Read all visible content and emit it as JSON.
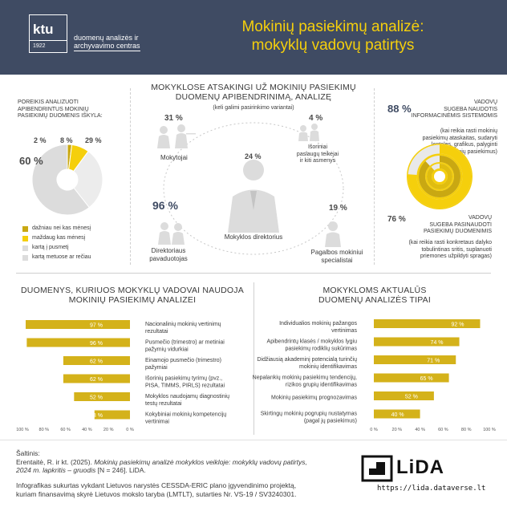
{
  "header": {
    "logo_mark": "ktu",
    "logo_year": "1922",
    "logo_line1": "duomenų analizės ir",
    "logo_line2": "archyvavimo centras",
    "title_line1": "Mokinių pasiekimų analizė:",
    "title_line2": "mokyklų vadovų patirtys"
  },
  "needs_section": {
    "title_line1": "POREIKIS ANALIZUOTI",
    "title_line2": "APIBENDRINTUS MOKINIŲ",
    "title_line3": "PASIEKIMŲ DUOMENIS IŠKYLA:",
    "legend": [
      {
        "label": "dažniau nei kas mėnesį",
        "color": "#c9a812"
      },
      {
        "label": "maždaug kas mėnesį",
        "color": "#f5cf0c"
      },
      {
        "label": "kartą į pusmetį",
        "color": "#dcdcdc"
      },
      {
        "label": "kartą metuose ar rečiau",
        "color": "#dcdcdc"
      }
    ]
  },
  "responsible_section": {
    "title_line1": "MOKYKLOSE ATSAKINGI UŽ MOKINIŲ PASIEKIMŲ",
    "title_line2": "DUOMENŲ APIBENDRINIMĄ, ANALIZĘ",
    "subtitle": "(keli galimi pasirinkimo variantai)",
    "roles": [
      {
        "pct": "31 %",
        "label": "Mokytojai"
      },
      {
        "pct": "4 %",
        "label_l1": "Išoriniai",
        "label_l2": "paslaugų teikėjai",
        "label_l3": "ir kiti asmenys"
      },
      {
        "pct": "24 %",
        "label": "Mokyklos direktorius"
      },
      {
        "pct": "96 %",
        "label_l1": "Direktoriaus",
        "label_l2": "pavaduotojas"
      },
      {
        "pct": "19 %",
        "label_l1": "Pagalbos mokiniui",
        "label_l2": "specialistai"
      }
    ]
  },
  "systems_section": {
    "pct1": "88 %",
    "text1_l1": "VADOVŲ",
    "text1_l2": "SUGEBA NAUDOTIS",
    "text1_l3": "INFORMACINĖMIS SISTEMOMIS",
    "note1_l1": "(kai reikia rasti mokinių",
    "note1_l2": "pasiekimų ataskaitas, sudaryti",
    "note1_l3": "lenteles, grafikus, palyginti",
    "note1_l4": "mokinių pasiekimus)",
    "pct2": "76 %",
    "text2_l1": "VADOVŲ",
    "text2_l2": "SUGEBA PASINAUDOTI",
    "text2_l3": "PASIEKIMŲ DUOMENIMIS",
    "note2_l1": "(kai reikia rasti konkretaus dalyko",
    "note2_l2": "tobulintinas sritis, suplanuoti",
    "note2_l3": "priemones užpildyti spragas)"
  },
  "data_used_section": {
    "title_line1": "DUOMENYS, KURIUOS MOKYKLŲ VADOVAI NAUDOJA",
    "title_line2": "MOKINIŲ PASIEKIMŲ ANALIZEI"
  },
  "types_section": {
    "title_line1": "MOKYKLOMS AKTUALŪS",
    "title_line2": "DUOMENŲ ANALIZĖS TIPAI"
  },
  "chart_data": [
    {
      "type": "pie",
      "title": "",
      "slices": [
        {
          "label": "dažniau nei kas mėnesį",
          "value": 2,
          "display": "2 %"
        },
        {
          "label": "maždaug kas mėnesį",
          "value": 8,
          "display": "8 %"
        },
        {
          "label": "kartą į pusmetį",
          "value": 29,
          "display": "29 %"
        },
        {
          "label": "kartą metuose ar rečiau",
          "value": 60,
          "display": "60 %"
        }
      ]
    },
    {
      "type": "bar",
      "orientation": "horizontal",
      "direction": "right-to-left",
      "title": "",
      "xlim": [
        0,
        100
      ],
      "tick_labels": [
        "100 %",
        "80 %",
        "60 %",
        "40 %",
        "20 %",
        "0 %"
      ],
      "categories": [
        [
          "Nacionalinių mokinių vertinimų",
          "rezultatai"
        ],
        [
          "Pusmečio (trimestro) ar metiniai",
          "pažymių vidurkiai"
        ],
        [
          "Einamojo pusmečio (trimestro)",
          "pažymiai"
        ],
        [
          "Išorinių pasiekimų tyrimų (pvz.,",
          "PISA, TIMMS, PIRLS) rezultatai"
        ],
        [
          "Mokyklos naudojamų diagnostinių",
          "testų rezultatai"
        ],
        [
          "Kokybiniai mokinių kompetencijų",
          "vertinimai"
        ]
      ],
      "values": [
        97,
        96,
        62,
        62,
        52,
        33
      ],
      "value_labels": [
        "97 %",
        "96 %",
        "62 %",
        "62 %",
        "52 %",
        "33 %"
      ]
    },
    {
      "type": "bar",
      "orientation": "horizontal",
      "title": "",
      "xlim": [
        0,
        100
      ],
      "tick_labels": [
        "0 %",
        "20 %",
        "40 %",
        "60 %",
        "80 %",
        "100 %"
      ],
      "categories": [
        [
          "Individualios mokinių pažangos",
          "vertinimas"
        ],
        [
          "Apibendrintų klasės / mokyklos lygiu",
          "pasiekimų rodiklių sukūrimas"
        ],
        [
          "Didžiausią akademinį potencialą turinčių",
          "mokinių identifikavimas"
        ],
        [
          "Nepalankių mokinių pasiekimų tendencijų,",
          "rizikos grupių identifikavimas"
        ],
        [
          "Mokinių pasiekimų prognozavimas"
        ],
        [
          "Skirtingų mokinių pogrupių nustatymas",
          "(pagal jų pasiekimus)"
        ]
      ],
      "values": [
        92,
        74,
        71,
        65,
        52,
        40
      ],
      "value_labels": [
        "92 %",
        "74 %",
        "71 %",
        "65 %",
        "52 %",
        "40 %"
      ]
    }
  ],
  "footer": {
    "source_label": "Šaltinis:",
    "source_l1_plain": "Erentaitė, R. ir kt. (2025). ",
    "source_l1_italic": "Mokinių pasiekimų analizė mokyklos veikloje: mokyklų vadovų patirtys,",
    "source_l2_italic": "2024 m. lapkritis – gruodis",
    "source_l2_plain": " [N = 246]. LiDA.",
    "funding_l1": "Infografikas sukurtas vykdant Lietuvos narystės CESSDA-ERIC plano įgyvendinimo projektą,",
    "funding_l2": "kuriam finansavimą skyrė Lietuvos mokslo taryba (LMTLT), sutarties Nr. VS-19 / SV3240301.",
    "lida_name": "LiDA",
    "lida_url": "https://lida.dataverse.lt"
  },
  "colors": {
    "header_bg": "#3f4b63",
    "title_yellow": "#f5cf0c",
    "bar_gold": "#d4b21a",
    "light_gray": "#dcdcdc"
  }
}
